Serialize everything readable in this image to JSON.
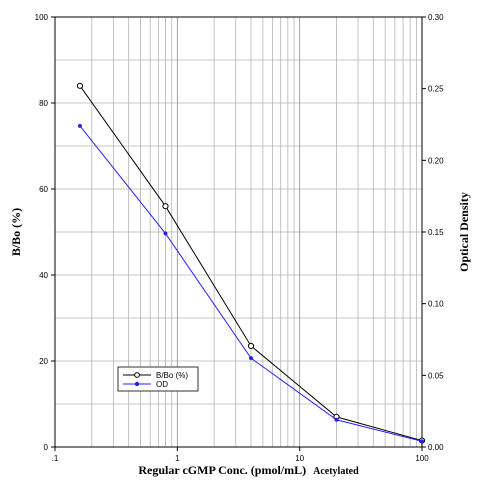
{
  "chart_data": {
    "type": "line",
    "xlabel": "Regular cGMP Conc. (pmol/mL)",
    "xlabel_suffix": "Acetylated",
    "ylabel_left": "B/Bo (%)",
    "ylabel_right": "Optical Density",
    "x_scale": "log",
    "xlim": [
      0.1,
      100
    ],
    "ylim_left": [
      0,
      100
    ],
    "ylim_right": [
      0,
      0.3
    ],
    "x_ticks": [
      {
        "value": 0.1,
        "label": ".1"
      },
      {
        "value": 1,
        "label": "1"
      },
      {
        "value": 10,
        "label": "10"
      },
      {
        "value": 100,
        "label": "100"
      }
    ],
    "y_ticks_left": [
      "0",
      "20",
      "40",
      "60",
      "80",
      "100"
    ],
    "y_ticks_right": [
      "0.00",
      "0.05",
      "0.10",
      "0.15",
      "0.20",
      "0.25",
      "0.30"
    ],
    "grid": true,
    "legend": {
      "position": "bottom-left",
      "entries": [
        "B/Bo (%)",
        "OD"
      ]
    },
    "series": [
      {
        "name": "B/Bo (%)",
        "axis": "left",
        "color": "#000000",
        "marker": "open-circle",
        "x": [
          0.16,
          0.8,
          4,
          20,
          100
        ],
        "y": [
          84,
          56,
          23.5,
          7,
          1.5
        ]
      },
      {
        "name": "OD",
        "axis": "right",
        "color": "#2222ee",
        "marker": "filled-dot",
        "x": [
          0.16,
          0.8,
          4,
          20,
          100
        ],
        "y": [
          0.224,
          0.149,
          0.062,
          0.019,
          0.004
        ]
      }
    ]
  }
}
